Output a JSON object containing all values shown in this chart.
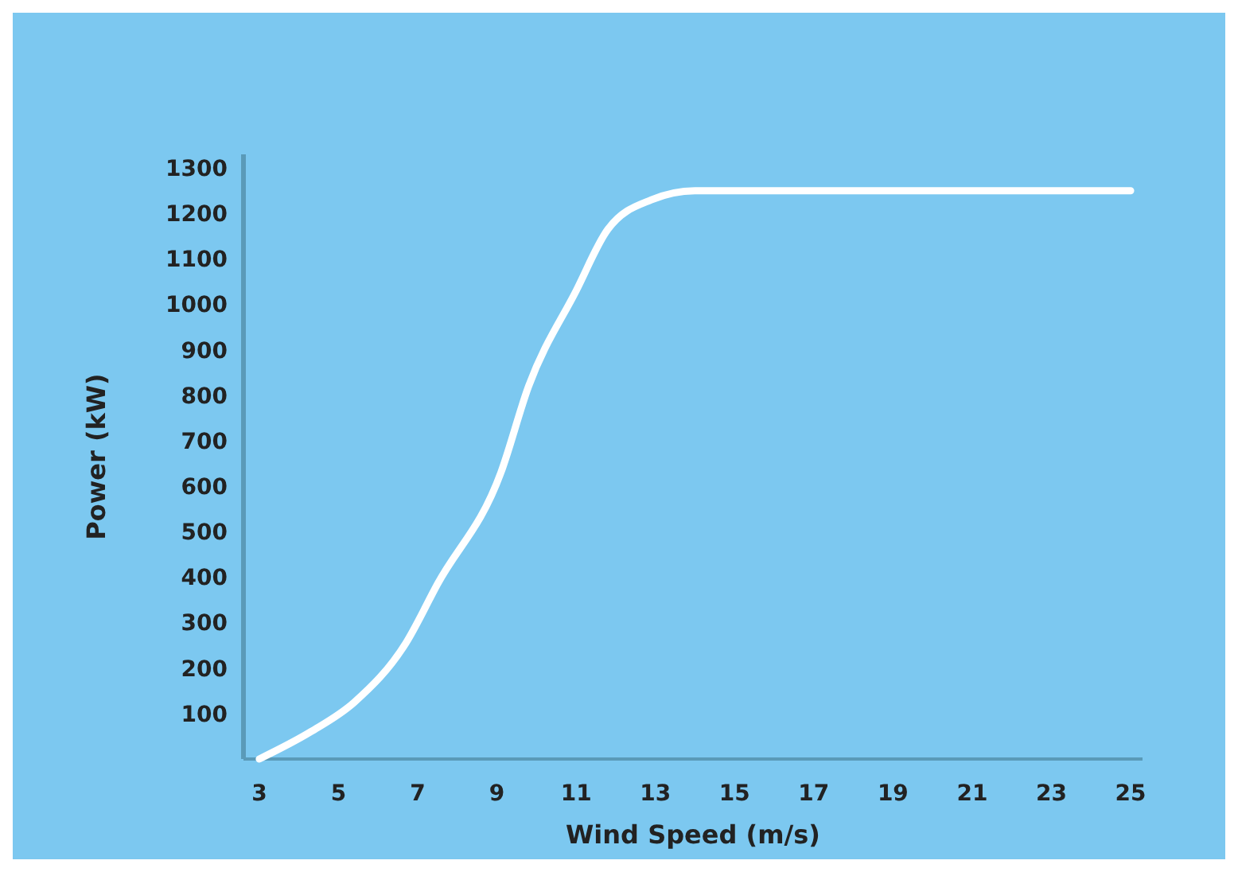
{
  "chart_data": {
    "type": "line",
    "xlabel": "Wind Speed (m/s)",
    "ylabel": "Power (kW)",
    "x": [
      3,
      4.3,
      5.4,
      6.7,
      7.5,
      9.1,
      9.8,
      11,
      11.8,
      12.9,
      14,
      15,
      17,
      19,
      21,
      23,
      25
    ],
    "series": [
      {
        "color": "#ffffff",
        "values": [
          0,
          60,
          125,
          255,
          385,
          630,
          820,
          1030,
          1165,
          1230,
          1250,
          1250,
          1250,
          1250,
          1250,
          1250,
          1250
        ]
      }
    ],
    "xlim": [
      2.6,
      25.3
    ],
    "xticks": [
      3,
      5,
      7,
      9,
      11,
      13,
      15,
      17,
      19,
      21,
      23,
      25
    ],
    "ylim": [
      0,
      1330
    ],
    "yticks": [
      100,
      200,
      300,
      400,
      500,
      600,
      700,
      800,
      900,
      1000,
      1100,
      1200,
      1300
    ],
    "grid": false,
    "marker": "none",
    "line_style": "solid"
  }
}
